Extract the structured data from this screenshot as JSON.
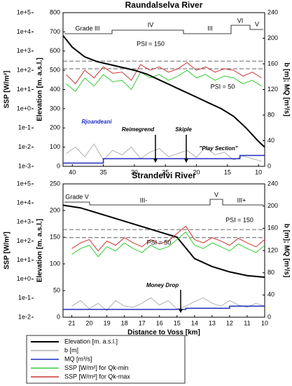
{
  "chart_data": [
    {
      "type": "line",
      "title": "Raundalselva River",
      "ylabel": "SSP [W/m²]",
      "y2label": "Elevation [m. a.s.l.]",
      "y3label": "b [m]; MQ [m³/s]",
      "xlim": [
        41.5,
        9
      ],
      "xticks": [
        40,
        35,
        30,
        25,
        20,
        15,
        10
      ],
      "ylog": true,
      "ylim": [
        0.001,
        100000
      ],
      "yticks": [
        {
          "value": 0.001,
          "label": "1e-3"
        },
        {
          "value": 0.01,
          "label": "1e-2"
        },
        {
          "value": 0.1,
          "label": "1e-1"
        },
        {
          "value": 1,
          "label": "1e+0"
        },
        {
          "value": 10,
          "label": "1e+1"
        },
        {
          "value": 100,
          "label": "1e+2"
        },
        {
          "value": 1000,
          "label": "1e+3"
        },
        {
          "value": 10000,
          "label": "1e+4"
        },
        {
          "value": 100000,
          "label": "1e+5"
        }
      ],
      "y2lim": [
        0,
        800
      ],
      "y2ticks": [
        0,
        100,
        200,
        300,
        400,
        500,
        600,
        700,
        800
      ],
      "y3lim": [
        0,
        240
      ],
      "y3ticks": [
        0,
        40,
        80,
        120,
        160,
        200,
        240
      ],
      "hlines": [
        300,
        120
      ],
      "grades": [
        "Grade III",
        "IV",
        "III",
        "VI",
        "V"
      ],
      "annotations": [
        "PSI = 150",
        "PSI = 50",
        "Rjoandeani",
        "Reimegrend",
        "Skiple",
        "\"Play Section\""
      ],
      "series": [
        {
          "name": "b [m]",
          "color": "#b0b0b0",
          "axis": "y3",
          "x": [
            41,
            39.5,
            38,
            36.5,
            35,
            33.5,
            32,
            30.5,
            29,
            27.5,
            26,
            24.5,
            23,
            21.5,
            20,
            18.5,
            17,
            15.5,
            14,
            12.5,
            11,
            9.5
          ],
          "values": [
            20,
            30,
            15,
            35,
            10,
            25,
            18,
            30,
            12,
            22,
            28,
            15,
            20,
            25,
            14,
            30,
            18,
            22,
            10,
            16,
            12,
            8
          ]
        },
        {
          "name": "SSP [W/m²] for Qk-min",
          "color": "#33cc33",
          "axis": "y",
          "x": [
            41,
            39.5,
            38,
            36.5,
            35,
            33.5,
            32,
            30.5,
            29,
            27.5,
            26,
            24.5,
            23,
            21.5,
            20,
            18.5,
            17,
            15.5,
            14,
            12.5,
            11,
            9.5
          ],
          "values": [
            20,
            8,
            40,
            15,
            60,
            25,
            30,
            10,
            80,
            40,
            60,
            30,
            50,
            100,
            40,
            60,
            30,
            50,
            40,
            20,
            30,
            15
          ]
        },
        {
          "name": "SSP [W/m²] for Qk-max",
          "color": "#cc3333",
          "axis": "y",
          "x": [
            41,
            39.5,
            38,
            36.5,
            35,
            33.5,
            32,
            30.5,
            29,
            27.5,
            26,
            24.5,
            23,
            21.5,
            20,
            18.5,
            17,
            15.5,
            14,
            12.5,
            11,
            9.5
          ],
          "values": [
            60,
            20,
            100,
            40,
            150,
            70,
            80,
            30,
            200,
            100,
            150,
            80,
            120,
            250,
            100,
            150,
            80,
            120,
            100,
            50,
            80,
            40
          ]
        },
        {
          "name": "Elevation [m. a.s.l.]",
          "color": "#000000",
          "axis": "y2",
          "x": [
            41.5,
            40,
            38,
            36,
            34,
            32,
            30,
            28,
            26,
            24,
            22,
            20,
            18,
            16,
            14,
            12,
            10,
            9
          ],
          "values": [
            680,
            620,
            570,
            545,
            530,
            515,
            500,
            480,
            450,
            420,
            390,
            360,
            330,
            300,
            260,
            200,
            130,
            100
          ]
        },
        {
          "name": "MQ [m³/s]",
          "color": "#1f2fbf",
          "axis": "y3",
          "x": [
            41.5,
            35,
            35,
            13,
            13,
            9
          ],
          "values": [
            5,
            5,
            12,
            12,
            17,
            17
          ]
        }
      ]
    },
    {
      "type": "line",
      "title": "Strandelvi River",
      "ylabel": "SSP [W/m²]",
      "y2label": "Elevation [m. a.s.l.]",
      "y3label": "b [m]; MQ [m³/s]",
      "xlabel": "Distance to Voss [km]",
      "xlim": [
        21.5,
        10
      ],
      "xticks": [
        21,
        20,
        19,
        18,
        17,
        16,
        15,
        14,
        13,
        12,
        11,
        10
      ],
      "ylog": true,
      "ylim": [
        0.01,
        100000
      ],
      "yticks": [
        {
          "value": 0.01,
          "label": "1e-2"
        },
        {
          "value": 0.1,
          "label": "1e-1"
        },
        {
          "value": 1,
          "label": "1e+0"
        },
        {
          "value": 10,
          "label": "1e+1"
        },
        {
          "value": 100,
          "label": "1e+2"
        },
        {
          "value": 1000,
          "label": "1e+3"
        },
        {
          "value": 10000,
          "label": "1e+4"
        },
        {
          "value": 100000,
          "label": "1e+5"
        }
      ],
      "y2lim": [
        0,
        250
      ],
      "y2ticks": [
        0,
        50,
        100,
        150,
        200,
        250
      ],
      "y3lim": [
        0,
        240
      ],
      "y3ticks": [
        0,
        40,
        80,
        120,
        160,
        200,
        240
      ],
      "hlines": [
        400,
        150
      ],
      "grades": [
        "Grade V",
        "III-",
        "V",
        "III+"
      ],
      "annotations": [
        "PSI = 150",
        "PSI = 50",
        "Money Drop"
      ],
      "legend": true,
      "series": [
        {
          "name": "Elevation [m. a.s.l.]",
          "color": "#000000",
          "axis": "y2",
          "x": [
            21.5,
            20.5,
            19,
            18,
            17,
            16,
            15,
            14.5,
            14,
            13,
            12,
            11,
            10
          ],
          "values": [
            210,
            205,
            190,
            180,
            170,
            160,
            150,
            130,
            110,
            95,
            85,
            78,
            75
          ]
        },
        {
          "name": "b [m]",
          "color": "#b0b0b0",
          "axis": "y3",
          "x": [
            21,
            20.5,
            20,
            19.5,
            19,
            18.5,
            18,
            17.5,
            17,
            16.5,
            16,
            15.5,
            15,
            14.5,
            14,
            13.5,
            13,
            12.5,
            12,
            11.5,
            11,
            10.5,
            10
          ],
          "values": [
            20,
            30,
            15,
            25,
            12,
            30,
            20,
            18,
            25,
            35,
            22,
            30,
            15,
            20,
            28,
            35,
            25,
            20,
            30,
            22,
            18,
            25,
            20
          ]
        },
        {
          "name": "MQ [m³/s]",
          "color": "#1f2fbf",
          "axis": "y3",
          "x": [
            21.5,
            14.5,
            14.5,
            12,
            12,
            10
          ],
          "values": [
            14,
            14,
            16,
            16,
            20,
            20
          ]
        },
        {
          "name": "SSP [W/m²] for Qk-min",
          "color": "#33cc33",
          "axis": "y",
          "x": [
            21,
            20.5,
            20,
            19.5,
            19,
            18.5,
            18,
            17.5,
            17,
            16.5,
            16,
            15.5,
            15,
            14.5,
            14,
            13.5,
            13,
            12.5,
            12,
            11.5,
            11,
            10.5,
            10
          ],
          "values": [
            20,
            40,
            60,
            15,
            50,
            30,
            80,
            40,
            25,
            60,
            35,
            50,
            120,
            300,
            60,
            40,
            80,
            50,
            30,
            70,
            40,
            25,
            60
          ]
        },
        {
          "name": "SSP [W/m²] for Qk-max",
          "color": "#cc3333",
          "axis": "y",
          "x": [
            21,
            20.5,
            20,
            19.5,
            19,
            18.5,
            18,
            17.5,
            17,
            16.5,
            16,
            15.5,
            15,
            14.5,
            14,
            13.5,
            13,
            12.5,
            12,
            11.5,
            11,
            10.5,
            10
          ],
          "values": [
            40,
            80,
            120,
            30,
            100,
            60,
            150,
            80,
            50,
            120,
            70,
            100,
            250,
            600,
            120,
            80,
            150,
            100,
            60,
            140,
            80,
            50,
            120
          ]
        }
      ]
    }
  ]
}
